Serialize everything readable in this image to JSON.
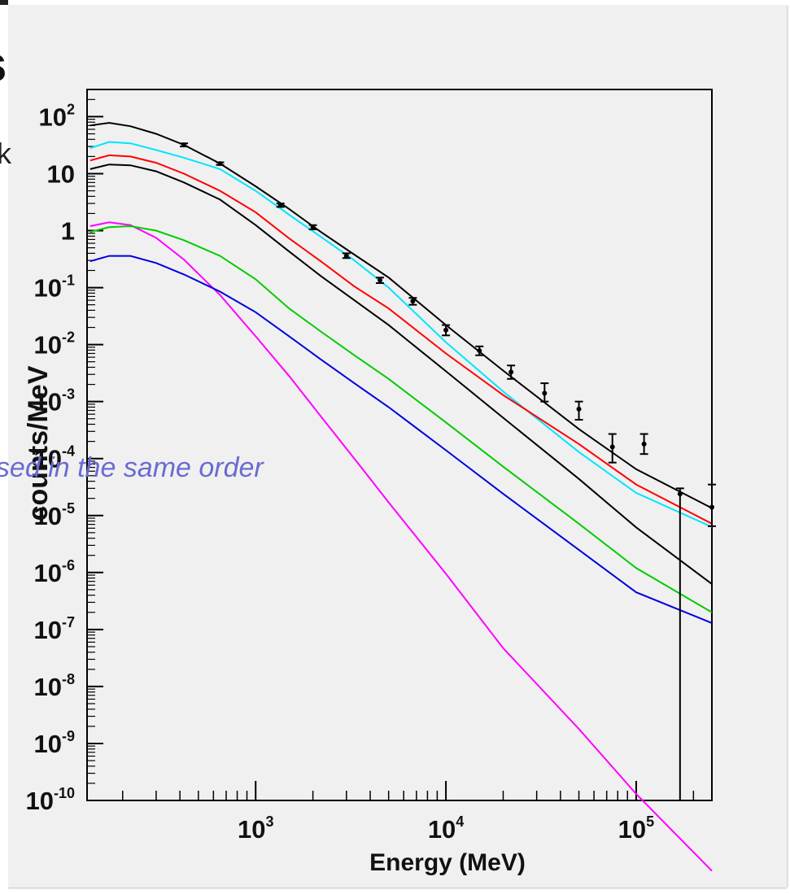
{
  "slide": {
    "fragment_top": "s",
    "fragment_left": "k",
    "caption": "used in the same order"
  },
  "chart_data": {
    "type": "line",
    "title": "",
    "xlabel": "Energy (MeV)",
    "ylabel": "counts/MeV",
    "xscale": "log",
    "yscale": "log",
    "xlim": [
      130,
      250000
    ],
    "ylim": [
      1e-10,
      300
    ],
    "grid": false,
    "x_tick_labels": [
      {
        "value": 1000,
        "base": "10",
        "exp": "3"
      },
      {
        "value": 10000,
        "base": "10",
        "exp": "4"
      },
      {
        "value": 100000,
        "base": "10",
        "exp": "5"
      }
    ],
    "y_tick_labels": [
      {
        "value": 100,
        "base": "10",
        "exp": "2"
      },
      {
        "value": 10,
        "base": "10",
        "exp": ""
      },
      {
        "value": 1,
        "base": "1",
        "exp": ""
      },
      {
        "value": 0.1,
        "base": "10",
        "exp": "-1"
      },
      {
        "value": 0.01,
        "base": "10",
        "exp": "-2"
      },
      {
        "value": 0.001,
        "base": "10",
        "exp": "-3"
      },
      {
        "value": 0.0001,
        "base": "10",
        "exp": "-4"
      },
      {
        "value": 1e-05,
        "base": "10",
        "exp": "-5"
      },
      {
        "value": 1e-06,
        "base": "10",
        "exp": "-6"
      },
      {
        "value": 1e-07,
        "base": "10",
        "exp": "-7"
      },
      {
        "value": 1e-08,
        "base": "10",
        "exp": "-8"
      },
      {
        "value": 1e-09,
        "base": "10",
        "exp": "-9"
      },
      {
        "value": 1e-10,
        "base": "10",
        "exp": "-10"
      }
    ],
    "series": [
      {
        "color": "#000000",
        "x": [
          135,
          170,
          220,
          300,
          420,
          650,
          1000,
          1500,
          2200,
          3300,
          5000,
          10000,
          20000,
          50000,
          100000,
          250000
        ],
        "y": [
          70,
          78,
          68,
          50,
          32,
          15,
          6,
          2.4,
          0.95,
          0.38,
          0.15,
          0.022,
          0.0035,
          0.00033,
          6.5e-05,
          1.35e-05
        ]
      },
      {
        "color": "#00e5ff",
        "x": [
          135,
          170,
          220,
          300,
          420,
          650,
          1000,
          1500,
          2200,
          3300,
          5000,
          10000,
          20000,
          50000,
          100000,
          250000
        ],
        "y": [
          28,
          36,
          34,
          26,
          19,
          12,
          5,
          1.9,
          0.78,
          0.3,
          0.1,
          0.011,
          0.0015,
          0.00013,
          2.5e-05,
          6.3e-06
        ]
      },
      {
        "color": "#ff0000",
        "x": [
          135,
          170,
          220,
          300,
          420,
          650,
          1000,
          1500,
          2200,
          3300,
          5000,
          10000,
          20000,
          50000,
          100000,
          250000
        ],
        "y": [
          17,
          21,
          20,
          15.5,
          10,
          5,
          2.1,
          0.73,
          0.29,
          0.105,
          0.043,
          0.007,
          0.0013,
          0.00018,
          3.5e-05,
          7.2e-06
        ]
      },
      {
        "color": "#000000",
        "x": [
          135,
          170,
          220,
          300,
          420,
          650,
          1000,
          1500,
          2200,
          3300,
          5000,
          10000,
          20000,
          50000,
          100000,
          250000
        ],
        "y": [
          12,
          14.5,
          14,
          11,
          7,
          3.5,
          1.25,
          0.43,
          0.16,
          0.06,
          0.022,
          0.0034,
          0.00052,
          4.4e-05,
          6.2e-06,
          6.3e-07
        ]
      },
      {
        "color": "#ff00ff",
        "x": [
          135,
          170,
          220,
          300,
          420,
          650,
          1000,
          1500,
          2200,
          3300,
          5000,
          10000,
          20000,
          50000,
          100000,
          250000
        ],
        "y": [
          1.2,
          1.4,
          1.25,
          0.75,
          0.31,
          0.074,
          0.014,
          0.0028,
          0.00055,
          0.0001,
          1.7e-05,
          9.5e-07,
          4.7e-08,
          1.8e-09,
          1.3e-10,
          5.8e-12
        ]
      },
      {
        "color": "#00cc00",
        "x": [
          135,
          170,
          220,
          300,
          420,
          650,
          1000,
          1500,
          2200,
          3300,
          5000,
          10000,
          20000,
          50000,
          100000,
          250000
        ],
        "y": [
          0.95,
          1.15,
          1.2,
          1.0,
          0.68,
          0.36,
          0.14,
          0.043,
          0.017,
          0.0065,
          0.0025,
          0.00043,
          7.2e-05,
          7.2e-06,
          1.2e-06,
          2e-07
        ]
      },
      {
        "color": "#0000dd",
        "x": [
          135,
          170,
          220,
          300,
          420,
          650,
          1000,
          1500,
          2200,
          3300,
          5000,
          10000,
          20000,
          50000,
          100000,
          250000
        ],
        "y": [
          0.29,
          0.36,
          0.36,
          0.27,
          0.17,
          0.085,
          0.037,
          0.014,
          0.0055,
          0.0021,
          0.0008,
          0.00014,
          2.4e-05,
          2.5e-06,
          4.5e-07,
          1.3e-07
        ]
      }
    ],
    "data_points": {
      "color": "#000000",
      "points": [
        {
          "x": 420,
          "y": 32,
          "lo": 30,
          "hi": 34
        },
        {
          "x": 650,
          "y": 15,
          "lo": 14.2,
          "hi": 15.8
        },
        {
          "x": 1350,
          "y": 2.8,
          "lo": 2.6,
          "hi": 3.0
        },
        {
          "x": 2000,
          "y": 1.15,
          "lo": 1.05,
          "hi": 1.25
        },
        {
          "x": 3000,
          "y": 0.36,
          "lo": 0.33,
          "hi": 0.4
        },
        {
          "x": 4500,
          "y": 0.135,
          "lo": 0.12,
          "hi": 0.15
        },
        {
          "x": 6700,
          "y": 0.058,
          "lo": 0.05,
          "hi": 0.066
        },
        {
          "x": 10000,
          "y": 0.018,
          "lo": 0.0145,
          "hi": 0.022
        },
        {
          "x": 15000,
          "y": 0.0078,
          "lo": 0.0065,
          "hi": 0.0093
        },
        {
          "x": 22000,
          "y": 0.0033,
          "lo": 0.0025,
          "hi": 0.0043
        },
        {
          "x": 33000,
          "y": 0.0014,
          "lo": 0.001,
          "hi": 0.0021
        },
        {
          "x": 50000,
          "y": 0.00074,
          "lo": 0.00048,
          "hi": 0.001
        },
        {
          "x": 75000,
          "y": 0.00016,
          "lo": 8.5e-05,
          "hi": 0.00027
        },
        {
          "x": 110000,
          "y": 0.00018,
          "lo": 0.00012,
          "hi": 0.00027
        },
        {
          "x": 170000,
          "y": 2.4e-05,
          "lo": 1e-10,
          "hi": 3e-05
        },
        {
          "x": 250000,
          "y": 1.4e-05,
          "lo": 6.5e-06,
          "hi": 3.5e-05
        }
      ]
    }
  }
}
